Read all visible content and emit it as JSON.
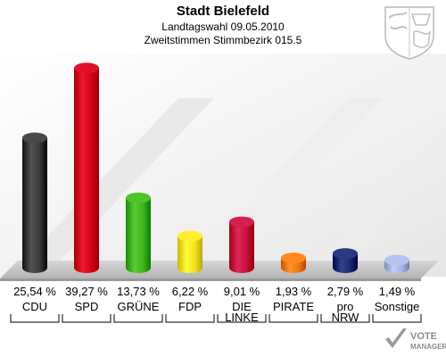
{
  "chart_data": {
    "type": "bar",
    "title": "Stadt Bielefeld",
    "subtitle_lines": [
      "Landtagswahl 09.05.2010",
      "Zweitstimmen Stimmbezirk 015.5"
    ],
    "categories": [
      [
        "CDU"
      ],
      [
        "SPD"
      ],
      [
        "GRÜNE"
      ],
      [
        "FDP"
      ],
      [
        "DIE",
        "LINKE"
      ],
      [
        "PIRATE"
      ],
      [
        "pro",
        "NRW"
      ],
      [
        "Sonstige"
      ]
    ],
    "values": [
      25.54,
      39.27,
      13.73,
      6.22,
      9.01,
      1.93,
      2.79,
      1.49
    ],
    "value_labels": [
      "25,54 %",
      "39,27 %",
      "13,73 %",
      "6,22 %",
      "9,01 %",
      "1,93 %",
      "2,79 %",
      "1,49 %"
    ],
    "colors": [
      "#3a3a3a",
      "#d4001a",
      "#3fb51a",
      "#f2e020",
      "#c8103f",
      "#f07a10",
      "#1a2a73",
      "#a8b4e0"
    ],
    "ylim": [
      0,
      40
    ],
    "grid": false,
    "legend": "none"
  },
  "branding": {
    "watermark_line1": "VOTE",
    "watermark_line2": "MANAGER",
    "crest_icon": "nrw-crest-icon"
  }
}
